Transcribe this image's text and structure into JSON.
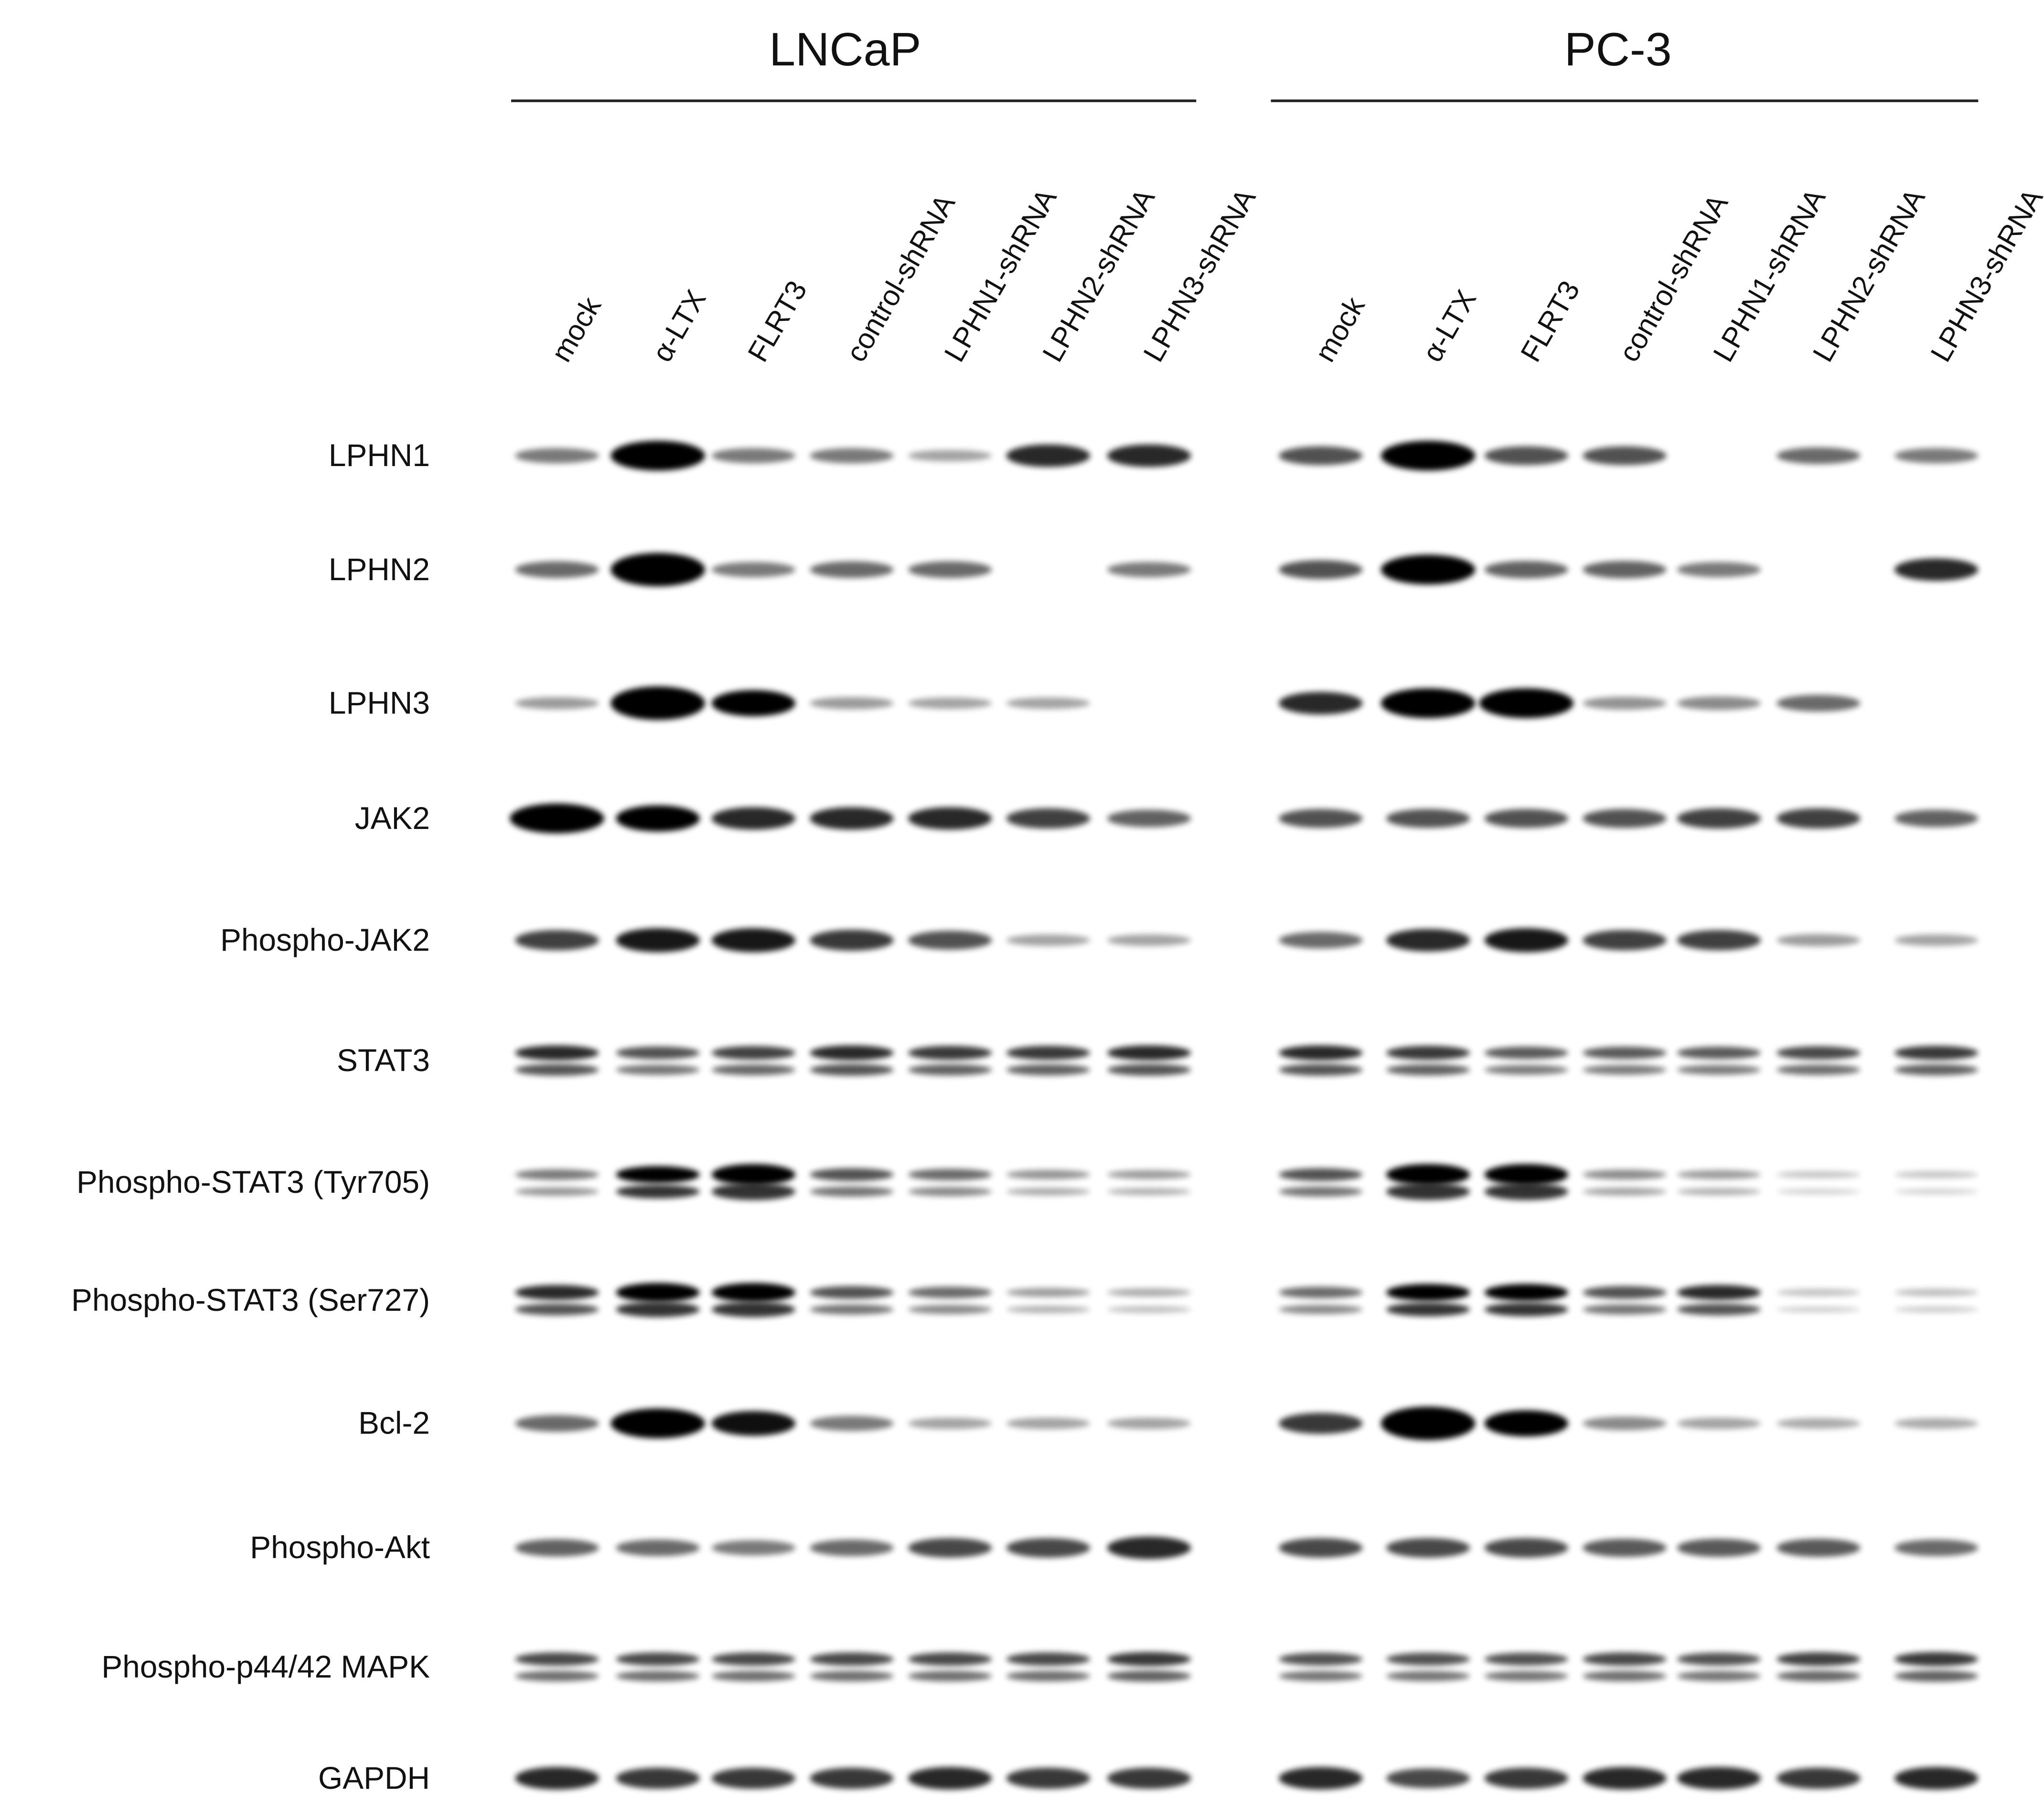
{
  "groups": [
    {
      "title": "LNCaP",
      "lanes": [
        "mock",
        "α-LTX",
        "FLRT3",
        "control-shRNA",
        "LPHN1-shRNA",
        "LPHN2-shRNA",
        "LPHN3-shRNA"
      ]
    },
    {
      "title": "PC-3",
      "lanes": [
        "mock",
        "α-LTX",
        "FLRT3",
        "control-shRNA",
        "LPHN1-shRNA",
        "LPHN2-shRNA",
        "LPHN3-shRNA"
      ]
    }
  ],
  "rows": [
    "LPHN1",
    "LPHN2",
    "LPHN3",
    "JAK2",
    "Phospho-JAK2",
    "STAT3",
    "Phospho-STAT3  (Tyr705)",
    "Phospho-STAT3  (Ser727)",
    "Bcl-2",
    "Phospho-Akt",
    "Phospho-p44/42  MAPK",
    "GAPDH"
  ]
}
